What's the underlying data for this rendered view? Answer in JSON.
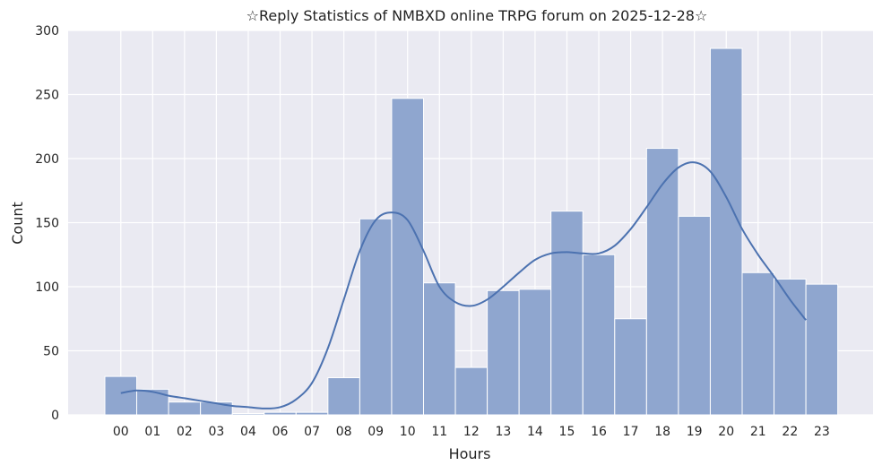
{
  "chart_data": {
    "type": "bar",
    "title": "☆Reply Statistics of NMBXD online TRPG forum on 2025-12-28☆",
    "xlabel": "Hours",
    "ylabel": "Count",
    "categories": [
      "00",
      "01",
      "02",
      "03",
      "04",
      "06",
      "07",
      "08",
      "09",
      "10",
      "11",
      "12",
      "13",
      "14",
      "15",
      "16",
      "17",
      "18",
      "19",
      "20",
      "21",
      "22",
      "23"
    ],
    "values": [
      30,
      20,
      10,
      10,
      1,
      2,
      2,
      29,
      153,
      247,
      103,
      37,
      97,
      98,
      159,
      125,
      75,
      208,
      155,
      286,
      111,
      106,
      102
    ],
    "kde": [
      [
        0.0,
        17
      ],
      [
        0.5,
        19
      ],
      [
        1.0,
        18
      ],
      [
        1.5,
        15
      ],
      [
        2.0,
        13
      ],
      [
        2.5,
        11
      ],
      [
        3.0,
        9
      ],
      [
        3.5,
        7
      ],
      [
        4.0,
        6
      ],
      [
        4.5,
        5
      ],
      [
        5.0,
        6
      ],
      [
        5.5,
        12
      ],
      [
        6.0,
        25
      ],
      [
        6.5,
        52
      ],
      [
        7.0,
        90
      ],
      [
        7.5,
        128
      ],
      [
        8.0,
        152
      ],
      [
        8.5,
        158
      ],
      [
        9.0,
        152
      ],
      [
        9.5,
        128
      ],
      [
        10.0,
        100
      ],
      [
        10.5,
        88
      ],
      [
        11.0,
        85
      ],
      [
        11.5,
        90
      ],
      [
        12.0,
        100
      ],
      [
        12.5,
        111
      ],
      [
        13.0,
        121
      ],
      [
        13.5,
        126
      ],
      [
        14.0,
        127
      ],
      [
        14.5,
        126
      ],
      [
        15.0,
        126
      ],
      [
        15.5,
        132
      ],
      [
        16.0,
        145
      ],
      [
        16.5,
        162
      ],
      [
        17.0,
        180
      ],
      [
        17.5,
        193
      ],
      [
        18.0,
        197
      ],
      [
        18.5,
        190
      ],
      [
        19.0,
        170
      ],
      [
        19.5,
        145
      ],
      [
        20.0,
        125
      ],
      [
        20.5,
        108
      ],
      [
        21.0,
        90
      ],
      [
        21.5,
        74
      ]
    ],
    "ylim": [
      0,
      300
    ],
    "yticks": [
      0,
      50,
      100,
      150,
      200,
      250,
      300
    ],
    "grid": true,
    "colors": {
      "background": "#eaeaf2",
      "grid": "#ffffff",
      "bar": "#8fa6cf",
      "bar_edge": "#ffffff",
      "kde": "#4c72b0"
    }
  }
}
